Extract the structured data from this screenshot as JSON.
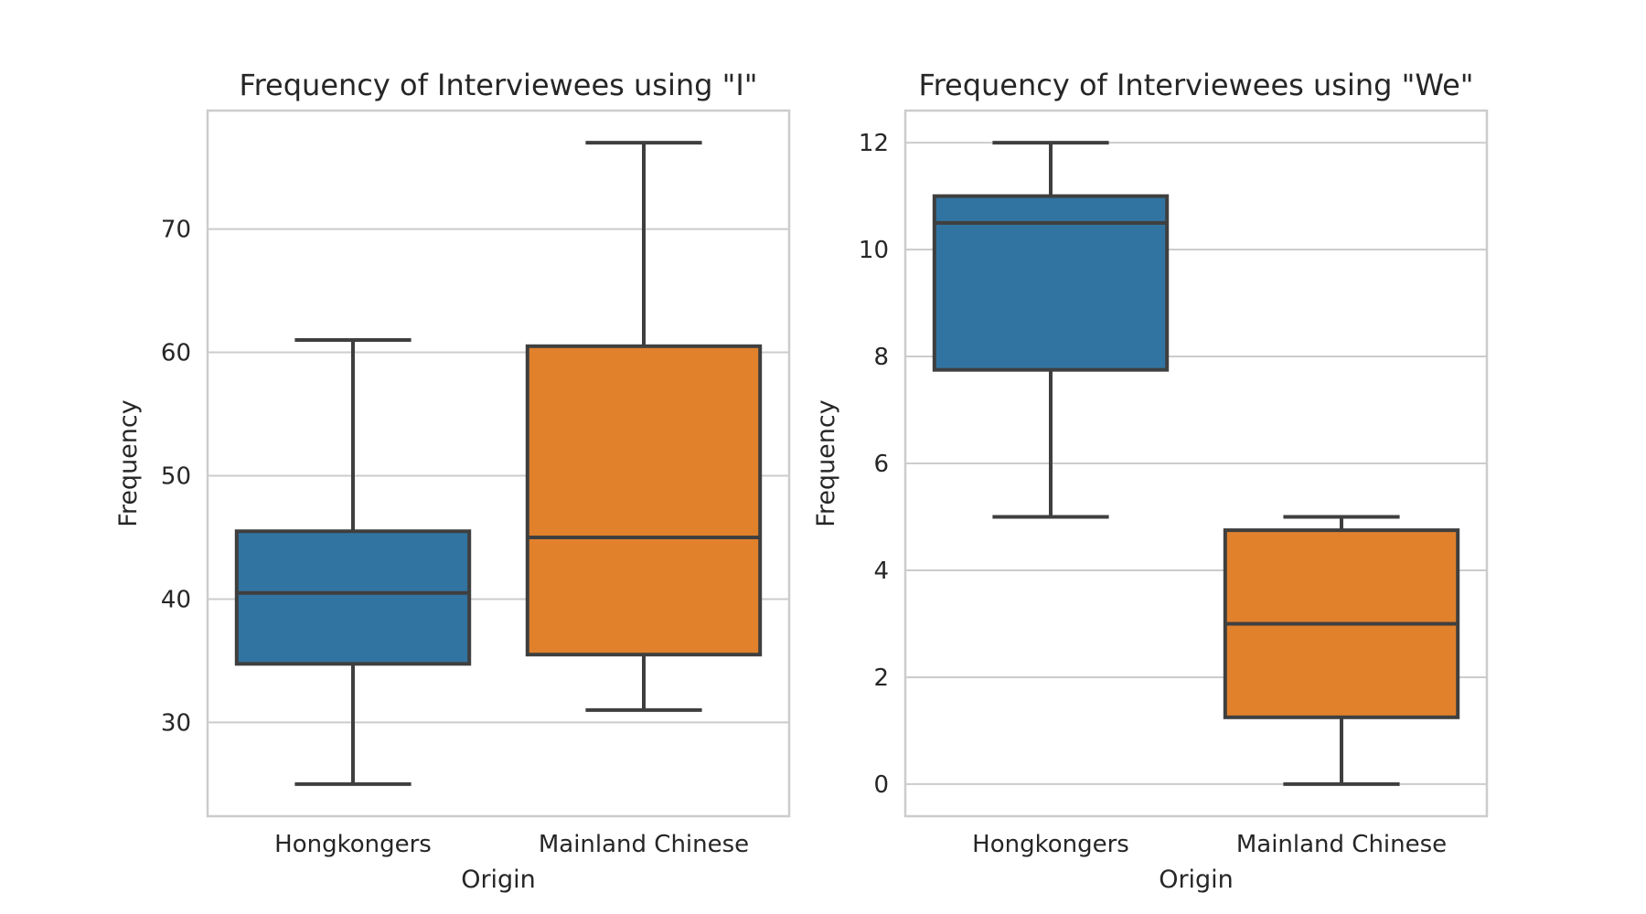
{
  "chart_data": [
    {
      "type": "box",
      "title": "Frequency of Interviewees using \"I\"",
      "xlabel": "Origin",
      "ylabel": "Frequency",
      "ylim": [
        22.4,
        79.6
      ],
      "yticks": [
        30,
        40,
        50,
        60,
        70
      ],
      "grid": true,
      "categories": [
        "Hongkongers",
        "Mainland Chinese"
      ],
      "boxes": [
        {
          "category": "Hongkongers",
          "whisker_low": 25,
          "q1": 34.75,
          "median": 40.5,
          "q3": 45.5,
          "whisker_high": 61,
          "color": "#3274a1"
        },
        {
          "category": "Mainland Chinese",
          "whisker_low": 31,
          "q1": 35.5,
          "median": 45,
          "q3": 60.5,
          "whisker_high": 77,
          "color": "#e1812c"
        }
      ]
    },
    {
      "type": "box",
      "title": "Frequency of Interviewees using \"We\"",
      "xlabel": "Origin",
      "ylabel": "Frequency",
      "ylim": [
        -0.6,
        12.6
      ],
      "yticks": [
        0,
        2,
        4,
        6,
        8,
        10,
        12
      ],
      "grid": true,
      "categories": [
        "Hongkongers",
        "Mainland Chinese"
      ],
      "boxes": [
        {
          "category": "Hongkongers",
          "whisker_low": 5,
          "q1": 7.75,
          "median": 10.5,
          "q3": 11,
          "whisker_high": 12,
          "color": "#3274a1"
        },
        {
          "category": "Mainland Chinese",
          "whisker_low": 0,
          "q1": 1.25,
          "median": 3,
          "q3": 4.75,
          "whisker_high": 5,
          "color": "#e1812c"
        }
      ]
    }
  ]
}
